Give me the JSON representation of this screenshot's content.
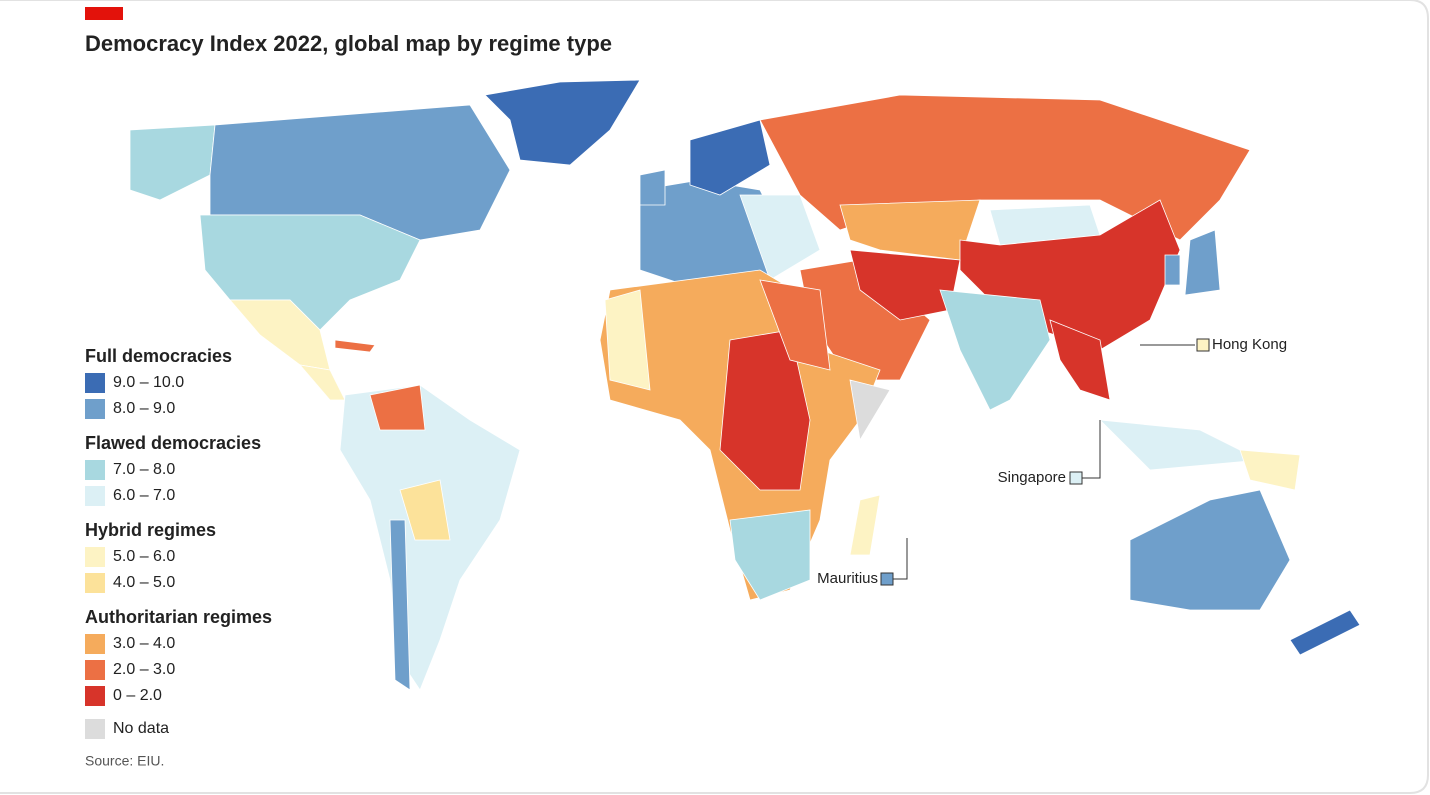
{
  "header": {
    "title": "Democracy Index 2022, global map by regime type"
  },
  "legend": [
    {
      "group": "Full democracies",
      "items": [
        {
          "label": "9.0 – 10.0",
          "color": "#3b6cb4"
        },
        {
          "label": "8.0 – 9.0",
          "color": "#6f9fcb"
        }
      ]
    },
    {
      "group": "Flawed democracies",
      "items": [
        {
          "label": "7.0 – 8.0",
          "color": "#a8d8e0"
        },
        {
          "label": "6.0 – 7.0",
          "color": "#dcf0f5"
        }
      ]
    },
    {
      "group": "Hybrid regimes",
      "items": [
        {
          "label": "5.0 – 6.0",
          "color": "#fdf3c4"
        },
        {
          "label": "4.0 – 5.0",
          "color": "#fce29a"
        }
      ]
    },
    {
      "group": "Authoritarian regimes",
      "items": [
        {
          "label": "3.0 – 4.0",
          "color": "#f5ab5c"
        },
        {
          "label": "2.0 – 3.0",
          "color": "#ec7044"
        },
        {
          "label": "0 – 2.0",
          "color": "#d7342a"
        }
      ]
    }
  ],
  "no_data": {
    "label": "No data",
    "color": "#dcdcdc"
  },
  "annotations": [
    "Hong Kong",
    "Singapore",
    "Mauritius"
  ],
  "source": "Source: EIU."
}
